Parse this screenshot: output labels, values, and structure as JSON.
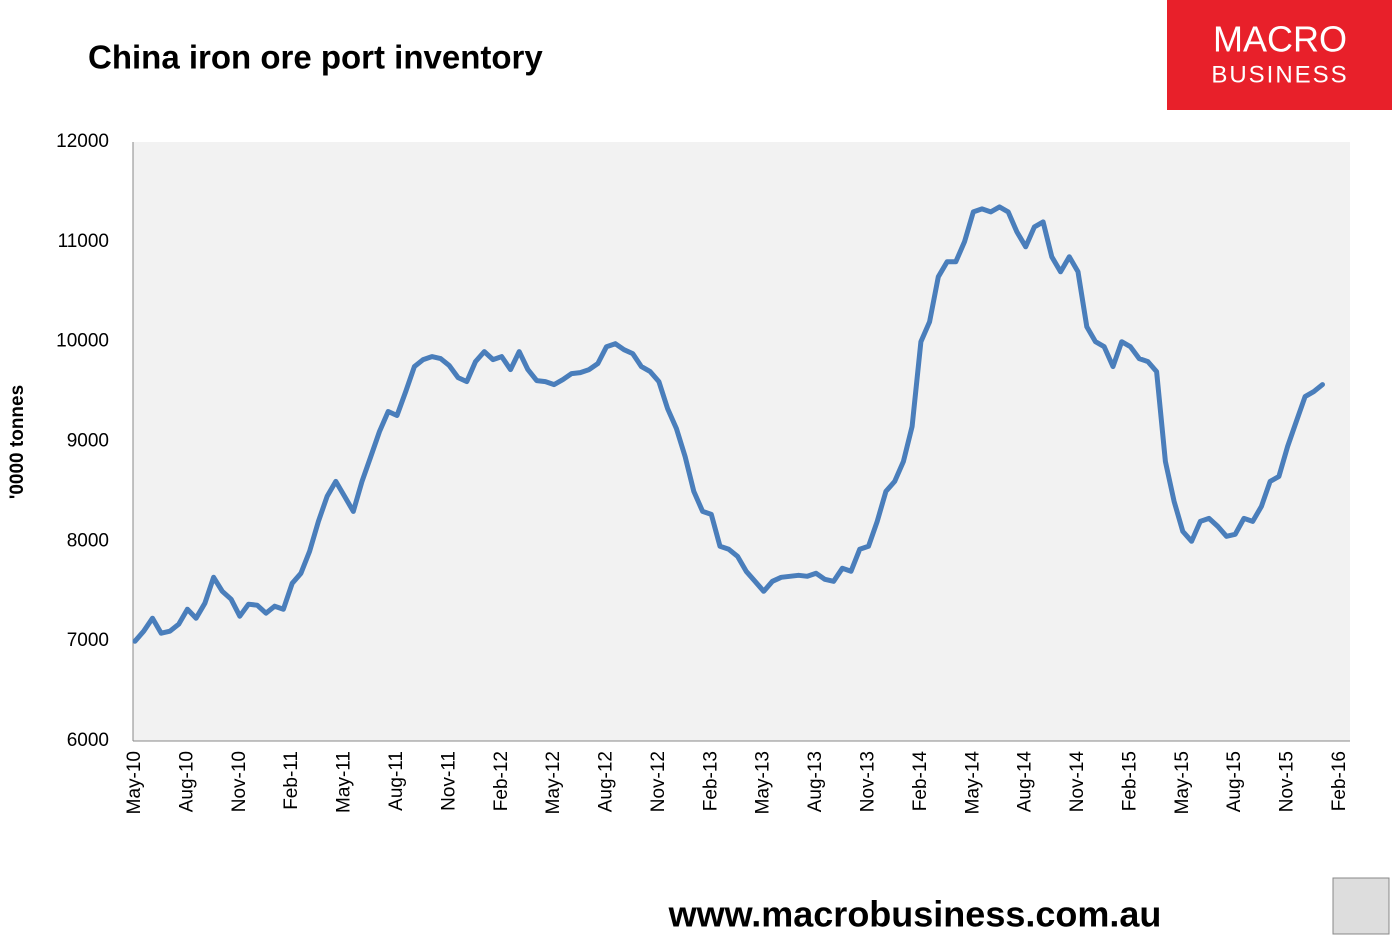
{
  "logo": {
    "line1": "MACRO",
    "line2": "BUSINESS"
  },
  "footer": "www.macrobusiness.com.au",
  "chart_data": {
    "type": "line",
    "title": "China iron ore port inventory",
    "y_label": "'0000 tonnes",
    "categories": [
      "May-10",
      null,
      null,
      null,
      null,
      null,
      "Aug-10",
      null,
      null,
      null,
      null,
      null,
      "Nov-10",
      null,
      null,
      null,
      null,
      null,
      "Feb-11",
      null,
      null,
      null,
      null,
      null,
      "May-11",
      null,
      null,
      null,
      null,
      null,
      "Aug-11",
      null,
      null,
      null,
      null,
      null,
      "Nov-11",
      null,
      null,
      null,
      null,
      null,
      "Feb-12",
      null,
      null,
      null,
      null,
      null,
      "May-12",
      null,
      null,
      null,
      null,
      null,
      "Aug-12",
      null,
      null,
      null,
      null,
      null,
      "Nov-12",
      null,
      null,
      null,
      null,
      null,
      "Feb-13",
      null,
      null,
      null,
      null,
      null,
      "May-13",
      null,
      null,
      null,
      null,
      null,
      "Aug-13",
      null,
      null,
      null,
      null,
      null,
      "Nov-13",
      null,
      null,
      null,
      null,
      null,
      "Feb-14",
      null,
      null,
      null,
      null,
      null,
      "May-14",
      null,
      null,
      null,
      null,
      null,
      "Aug-14",
      null,
      null,
      null,
      null,
      null,
      "Nov-14",
      null,
      null,
      null,
      null,
      null,
      "Feb-15",
      null,
      null,
      null,
      null,
      null,
      "May-15",
      null,
      null,
      null,
      null,
      null,
      "Aug-15",
      null,
      null,
      null,
      null,
      null,
      "Nov-15",
      null,
      null,
      null,
      null,
      null,
      "Feb-16"
    ],
    "series": [
      {
        "name": "China iron ore port inventory",
        "color": "#4a7ebb",
        "values": [
          7000,
          7100,
          7230,
          7080,
          7100,
          7170,
          7320,
          7230,
          7380,
          7640,
          7500,
          7420,
          7250,
          7370,
          7360,
          7280,
          7350,
          7320,
          7580,
          7680,
          7900,
          8200,
          8450,
          8600,
          8450,
          8300,
          8600,
          8850,
          9100,
          9300,
          9260,
          9500,
          9750,
          9820,
          9850,
          9830,
          9760,
          9640,
          9600,
          9800,
          9900,
          9820,
          9850,
          9720,
          9900,
          9720,
          9610,
          9600,
          9570,
          9620,
          9680,
          9690,
          9720,
          9780,
          9950,
          9980,
          9920,
          9880,
          9750,
          9700,
          9600,
          9330,
          9130,
          8850,
          8500,
          8300,
          8270,
          7950,
          7920,
          7850,
          7700,
          7600,
          7500,
          7600,
          7640,
          7650,
          7660,
          7650,
          7680,
          7620,
          7600,
          7730,
          7700,
          7920,
          7950,
          8200,
          8500,
          8600,
          8800,
          9150,
          10000,
          10200,
          10650,
          10800,
          10800,
          11000,
          11300,
          11330,
          11300,
          11350,
          11300,
          11100,
          10950,
          11150,
          11200,
          10850,
          10700,
          10850,
          10700,
          10150,
          10000,
          9950,
          9750,
          10000,
          9950,
          9830,
          9800,
          9700,
          8800,
          8400,
          8100,
          8000,
          8200,
          8230,
          8150,
          8050,
          8070,
          8230,
          8200,
          8350,
          8600,
          8650,
          8950,
          9200,
          9450,
          9500,
          9570,
          null,
          null
        ]
      }
    ],
    "ylim": [
      6000,
      12000
    ],
    "yticks": [
      6000,
      7000,
      8000,
      9000,
      10000,
      11000,
      12000
    ],
    "grid": false
  }
}
